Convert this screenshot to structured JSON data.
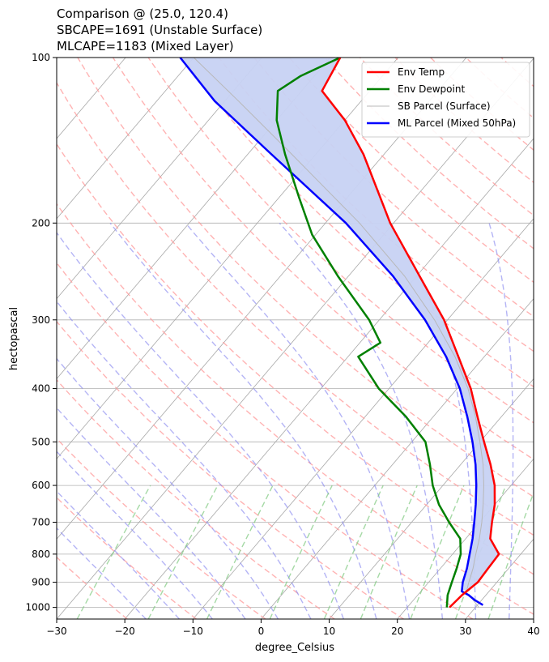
{
  "chart_data": {
    "type": "line",
    "chart_kind": "skew-T log-P diagram",
    "title_lines": [
      "Comparison @ (25.0, 120.4)",
      "SBCAPE=1691 (Unstable Surface)",
      "MLCAPE=1183 (Mixed Layer)"
    ],
    "xlabel": "degree_Celsius",
    "ylabel": "hectopascal",
    "xlim": [
      -30,
      40
    ],
    "ylim": [
      1050,
      100
    ],
    "x_ticks": [
      -30,
      -20,
      -10,
      0,
      10,
      20,
      30,
      40
    ],
    "y_ticks": [
      100,
      200,
      300,
      400,
      500,
      600,
      700,
      800,
      900,
      1000
    ],
    "legend_position": "top-right",
    "series": [
      {
        "name": "Env Temp",
        "color": "#ff0000",
        "points": [
          [
            1000,
            26.2
          ],
          [
            950,
            26.5
          ],
          [
            900,
            27.2
          ],
          [
            850,
            27.0
          ],
          [
            800,
            26.8
          ],
          [
            750,
            23.6
          ],
          [
            700,
            21.8
          ],
          [
            650,
            20.0
          ],
          [
            600,
            17.6
          ],
          [
            550,
            14.4
          ],
          [
            500,
            10.6
          ],
          [
            450,
            6.5
          ],
          [
            400,
            2.0
          ],
          [
            350,
            -3.8
          ],
          [
            300,
            -10.5
          ],
          [
            250,
            -19.5
          ],
          [
            200,
            -30.5
          ],
          [
            175,
            -36.3
          ],
          [
            150,
            -43.0
          ],
          [
            130,
            -50.0
          ],
          [
            115,
            -57.0
          ],
          [
            100,
            -58.5
          ]
        ]
      },
      {
        "name": "Env Dewpoint",
        "color": "#008000",
        "points": [
          [
            1000,
            25.8
          ],
          [
            950,
            24.4
          ],
          [
            900,
            23.4
          ],
          [
            850,
            22.4
          ],
          [
            800,
            21.2
          ],
          [
            750,
            19.2
          ],
          [
            700,
            15.5
          ],
          [
            650,
            11.8
          ],
          [
            600,
            8.5
          ],
          [
            550,
            5.5
          ],
          [
            500,
            2.0
          ],
          [
            450,
            -4.0
          ],
          [
            400,
            -11.5
          ],
          [
            350,
            -18.5
          ],
          [
            330,
            -17.0
          ],
          [
            300,
            -21.5
          ],
          [
            250,
            -31.5
          ],
          [
            210,
            -40.5
          ],
          [
            180,
            -47.0
          ],
          [
            150,
            -54.5
          ],
          [
            130,
            -60.0
          ],
          [
            115,
            -63.5
          ],
          [
            108,
            -62.0
          ],
          [
            100,
            -58.5
          ]
        ]
      },
      {
        "name": "SB Parcel (Surface)",
        "color": "#b8b8b8",
        "points": [
          [
            1000,
            30.5
          ],
          [
            950,
            27.6
          ],
          [
            940,
            26.8
          ],
          [
            900,
            25.9
          ],
          [
            850,
            24.8
          ],
          [
            800,
            23.4
          ],
          [
            750,
            22.0
          ],
          [
            700,
            20.3
          ],
          [
            650,
            18.3
          ],
          [
            600,
            16.0
          ],
          [
            550,
            13.3
          ],
          [
            500,
            10.0
          ],
          [
            450,
            6.2
          ],
          [
            400,
            1.6
          ],
          [
            350,
            -4.3
          ],
          [
            300,
            -11.9
          ],
          [
            250,
            -21.7
          ],
          [
            200,
            -35.0
          ],
          [
            150,
            -53.5
          ],
          [
            120,
            -68.0
          ],
          [
            100,
            -80.0
          ]
        ]
      },
      {
        "name": "ML Parcel (Mixed 50hPa)",
        "color": "#0000ff",
        "points": [
          [
            990,
            30.8
          ],
          [
            970,
            29.0
          ],
          [
            950,
            27.5
          ],
          [
            935,
            26.0
          ],
          [
            900,
            25.0
          ],
          [
            850,
            23.9
          ],
          [
            800,
            22.5
          ],
          [
            750,
            21.0
          ],
          [
            700,
            19.2
          ],
          [
            650,
            17.2
          ],
          [
            600,
            14.9
          ],
          [
            550,
            12.2
          ],
          [
            500,
            8.9
          ],
          [
            450,
            5.0
          ],
          [
            400,
            0.4
          ],
          [
            350,
            -5.6
          ],
          [
            300,
            -13.3
          ],
          [
            250,
            -23.4
          ],
          [
            200,
            -37.0
          ],
          [
            150,
            -56.5
          ],
          [
            120,
            -71.5
          ],
          [
            100,
            -82.0
          ]
        ]
      }
    ],
    "cape_shading": {
      "color": "#c7d2f3",
      "between": [
        "ML Parcel (Mixed 50hPa)",
        "Env Temp"
      ],
      "p_range": [
        930,
        100
      ]
    },
    "background_lines": {
      "isotherms_step_c": 10,
      "dry_adiabats_theta_k": [
        250,
        260,
        270,
        280,
        290,
        300,
        310,
        320,
        330,
        340,
        350,
        360,
        370,
        380,
        390,
        400,
        410,
        420,
        430,
        440,
        450,
        460,
        470
      ],
      "moist_adiabats_start_c": [
        -20,
        -15,
        -10,
        -5,
        0,
        5,
        10,
        15,
        20,
        25,
        30,
        35,
        40,
        45
      ],
      "mixing_ratios_g_kg": [
        0.4,
        1,
        2,
        4,
        7,
        10,
        16,
        24,
        32
      ]
    }
  }
}
